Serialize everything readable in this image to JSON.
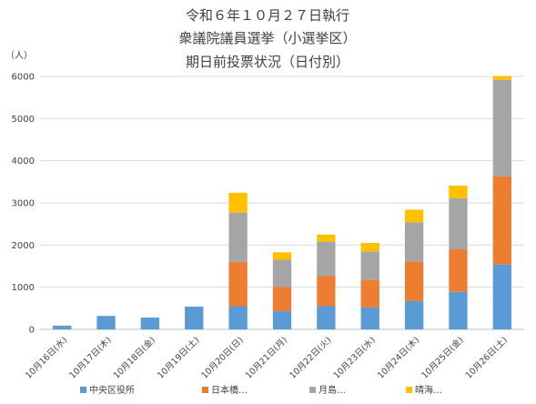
{
  "chart_data": {
    "type": "bar",
    "stacked": true,
    "title_lines": [
      "令和６年１０月２７日執行",
      "衆議院議員選挙（小選挙区）",
      "期日前投票状況（日付別）"
    ],
    "unit_label": "（人）",
    "categories": [
      "10月16日(水)",
      "10月17日(木)",
      "10月18日(金)",
      "10月19日(土)",
      "10月20日(日)",
      "10月21日(月)",
      "10月22日(火)",
      "10月23日(水)",
      "10月24日(木)",
      "10月25日(金)",
      "10月26日(土)"
    ],
    "y_ticks": [
      "0",
      "1000",
      "2000",
      "3000",
      "4000",
      "5000",
      "6000"
    ],
    "ylim": [
      0,
      6000
    ],
    "grid": true,
    "legend_position": "bottom",
    "series": [
      {
        "name": "中央区役所",
        "color": "#5b9bd5",
        "values": [
          90,
          320,
          280,
          540,
          550,
          430,
          550,
          520,
          670,
          890,
          1540
        ]
      },
      {
        "name": "日本橋…",
        "color": "#ed7d31",
        "values": [
          0,
          0,
          0,
          0,
          1050,
          580,
          720,
          650,
          940,
          1010,
          2090
        ]
      },
      {
        "name": "月島…",
        "color": "#a5a5a5",
        "values": [
          0,
          0,
          0,
          0,
          1170,
          640,
          810,
          680,
          930,
          1210,
          2290
        ]
      },
      {
        "name": "晴海…",
        "color": "#ffc000",
        "values": [
          0,
          0,
          0,
          0,
          470,
          180,
          170,
          200,
          300,
          300,
          90
        ]
      }
    ]
  }
}
